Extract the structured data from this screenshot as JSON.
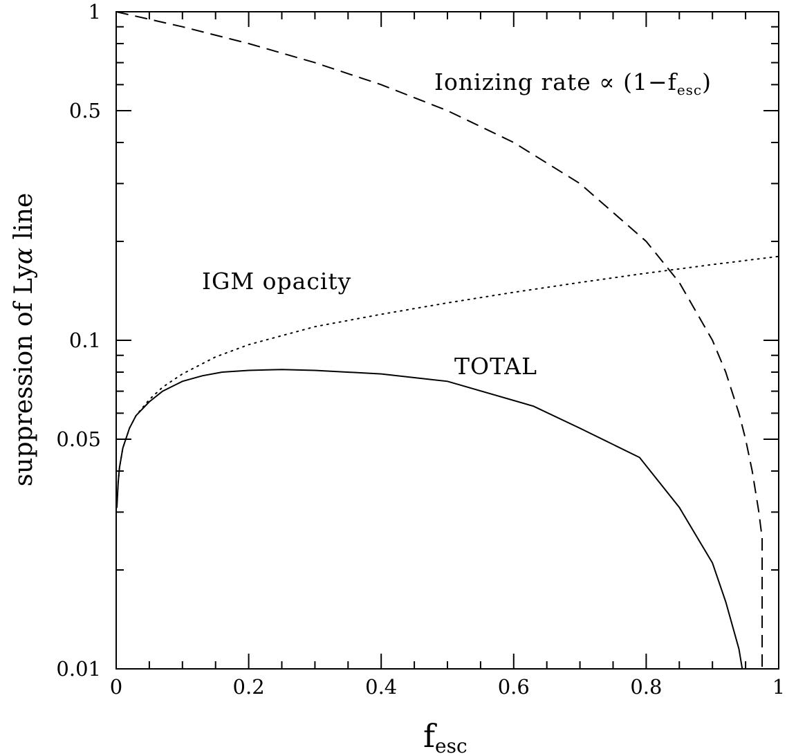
{
  "chart_data": {
    "type": "line",
    "title": "",
    "xlabel": {
      "main": "f",
      "sub": "esc"
    },
    "ylabel": {
      "pre": "suppression of Ly",
      "greek": "α",
      "post": " line"
    },
    "x_scale": "linear",
    "y_scale": "log",
    "xlim": [
      0,
      1
    ],
    "ylim": [
      0.01,
      1
    ],
    "x_ticks": [
      0,
      0.2,
      0.4,
      0.6,
      0.8,
      1
    ],
    "x_tick_labels": [
      "0",
      "0.2",
      "0.4",
      "0.6",
      "0.8",
      "1"
    ],
    "y_ticks": [
      0.01,
      0.05,
      0.1,
      0.5,
      1
    ],
    "y_tick_labels": [
      "0.01",
      "0.05",
      "0.1",
      "0.5",
      "1"
    ],
    "grid": false,
    "series": [
      {
        "style": "dashed",
        "x": [
          0,
          0.1,
          0.2,
          0.3,
          0.4,
          0.5,
          0.6,
          0.7,
          0.8,
          0.85,
          0.9,
          0.92,
          0.94,
          0.95,
          0.96,
          0.97,
          0.975
        ],
        "y": [
          1.0,
          0.9,
          0.8,
          0.7,
          0.6,
          0.5,
          0.4,
          0.3,
          0.2,
          0.15,
          0.1,
          0.08,
          0.06,
          0.05,
          0.04,
          0.03,
          0.025
        ]
      },
      {
        "style": "dotted",
        "x": [
          0.001,
          0.003,
          0.005,
          0.01,
          0.02,
          0.03,
          0.05,
          0.07,
          0.1,
          0.15,
          0.2,
          0.3,
          0.4,
          0.5,
          0.6,
          0.7,
          0.8,
          0.9,
          1.0
        ],
        "y": [
          0.031,
          0.037,
          0.041,
          0.047,
          0.054,
          0.059,
          0.066,
          0.072,
          0.079,
          0.089,
          0.097,
          0.11,
          0.12,
          0.13,
          0.14,
          0.15,
          0.16,
          0.17,
          0.18
        ]
      },
      {
        "style": "solid",
        "x": [
          0.001,
          0.003,
          0.005,
          0.01,
          0.02,
          0.03,
          0.05,
          0.07,
          0.1,
          0.13,
          0.16,
          0.2,
          0.25,
          0.3,
          0.4,
          0.5,
          0.63,
          0.7,
          0.79,
          0.85,
          0.9,
          0.92,
          0.94,
          0.945
        ],
        "y": [
          0.031,
          0.037,
          0.041,
          0.047,
          0.054,
          0.059,
          0.065,
          0.07,
          0.075,
          0.078,
          0.08,
          0.081,
          0.0815,
          0.081,
          0.079,
          0.075,
          0.063,
          0.054,
          0.044,
          0.031,
          0.021,
          0.016,
          0.0115,
          0.01
        ]
      }
    ],
    "annotations": [
      {
        "id": "ionizing",
        "text": "Ionizing rate ∝ (1−f",
        "sub": "esc",
        "tail": ")"
      },
      {
        "id": "igm",
        "text": "IGM opacity"
      },
      {
        "id": "total",
        "text": "TOTAL"
      }
    ]
  }
}
